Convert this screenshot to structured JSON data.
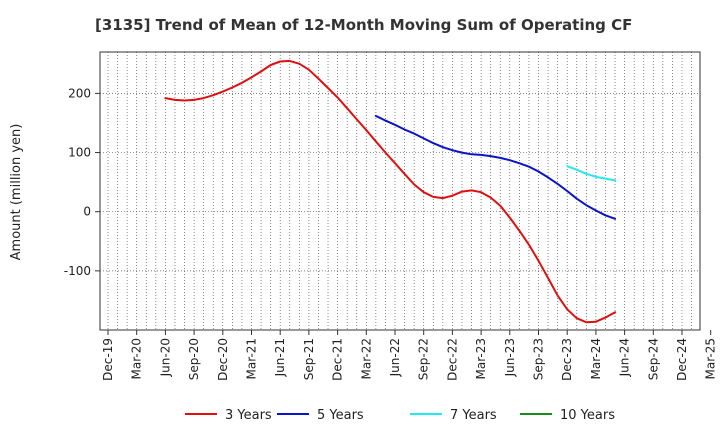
{
  "chart_data": {
    "type": "line",
    "title": "[3135]  Trend of Mean of 12-Month Moving Sum of Operating CF",
    "xlabel": "",
    "ylabel": "Amount (million yen)",
    "ylim": [
      -200,
      270
    ],
    "yticks": [
      -100,
      0,
      100,
      200
    ],
    "ytick_labels": [
      "-100",
      "0",
      "100",
      "200"
    ],
    "x_categories": [
      "Dec-19",
      "Mar-20",
      "Jun-20",
      "Sep-20",
      "Dec-20",
      "Mar-21",
      "Jun-21",
      "Sep-21",
      "Dec-21",
      "Mar-22",
      "Jun-22",
      "Sep-22",
      "Dec-22",
      "Mar-23",
      "Jun-23",
      "Sep-23",
      "Dec-23",
      "Mar-24",
      "Jun-24",
      "Sep-24",
      "Dec-24",
      "Mar-25"
    ],
    "grid": true,
    "legend_position": "bottom",
    "series": [
      {
        "name": "3 Years",
        "color": "#dd1111",
        "points": [
          [
            2,
            192
          ],
          [
            2.33,
            189
          ],
          [
            2.67,
            188
          ],
          [
            3,
            189
          ],
          [
            3.33,
            192
          ],
          [
            3.67,
            197
          ],
          [
            4,
            203
          ],
          [
            4.33,
            210
          ],
          [
            4.67,
            218
          ],
          [
            5,
            227
          ],
          [
            5.33,
            237
          ],
          [
            5.67,
            248
          ],
          [
            6,
            254
          ],
          [
            6.33,
            255
          ],
          [
            6.67,
            250
          ],
          [
            7,
            240
          ],
          [
            7.33,
            225
          ],
          [
            7.67,
            209
          ],
          [
            8,
            193
          ],
          [
            8.33,
            175
          ],
          [
            8.67,
            156
          ],
          [
            9,
            138
          ],
          [
            9.33,
            119
          ],
          [
            9.67,
            100
          ],
          [
            10,
            82
          ],
          [
            10.33,
            64
          ],
          [
            10.67,
            46
          ],
          [
            11,
            33
          ],
          [
            11.33,
            25
          ],
          [
            11.67,
            23
          ],
          [
            12,
            27
          ],
          [
            12.33,
            34
          ],
          [
            12.67,
            36
          ],
          [
            13,
            33
          ],
          [
            13.33,
            24
          ],
          [
            13.67,
            10
          ],
          [
            14,
            -10
          ],
          [
            14.33,
            -32
          ],
          [
            14.67,
            -56
          ],
          [
            15,
            -83
          ],
          [
            15.33,
            -112
          ],
          [
            15.67,
            -142
          ],
          [
            16,
            -165
          ],
          [
            16.33,
            -180
          ],
          [
            16.67,
            -187
          ],
          [
            17,
            -186
          ],
          [
            17.33,
            -179
          ],
          [
            17.67,
            -170
          ]
        ]
      },
      {
        "name": "5 Years",
        "color": "#0a14c8",
        "points": [
          [
            9.33,
            162
          ],
          [
            9.67,
            154
          ],
          [
            10,
            147
          ],
          [
            10.33,
            139
          ],
          [
            10.67,
            132
          ],
          [
            11,
            124
          ],
          [
            11.33,
            116
          ],
          [
            11.67,
            109
          ],
          [
            12,
            104
          ],
          [
            12.33,
            100
          ],
          [
            12.67,
            97
          ],
          [
            13,
            96
          ],
          [
            13.33,
            94
          ],
          [
            13.67,
            91
          ],
          [
            14,
            87
          ],
          [
            14.33,
            82
          ],
          [
            14.67,
            76
          ],
          [
            15,
            68
          ],
          [
            15.33,
            58
          ],
          [
            15.67,
            47
          ],
          [
            16,
            35
          ],
          [
            16.33,
            22
          ],
          [
            16.67,
            11
          ],
          [
            17,
            2
          ],
          [
            17.33,
            -6
          ],
          [
            17.67,
            -12
          ]
        ]
      },
      {
        "name": "7 Years",
        "color": "#22e8f0",
        "points": [
          [
            16,
            77
          ],
          [
            16.33,
            71
          ],
          [
            16.67,
            64
          ],
          [
            17,
            59
          ],
          [
            17.33,
            56
          ],
          [
            17.67,
            53
          ]
        ]
      },
      {
        "name": "10 Years",
        "color": "#1a8a1a",
        "points": []
      }
    ]
  }
}
